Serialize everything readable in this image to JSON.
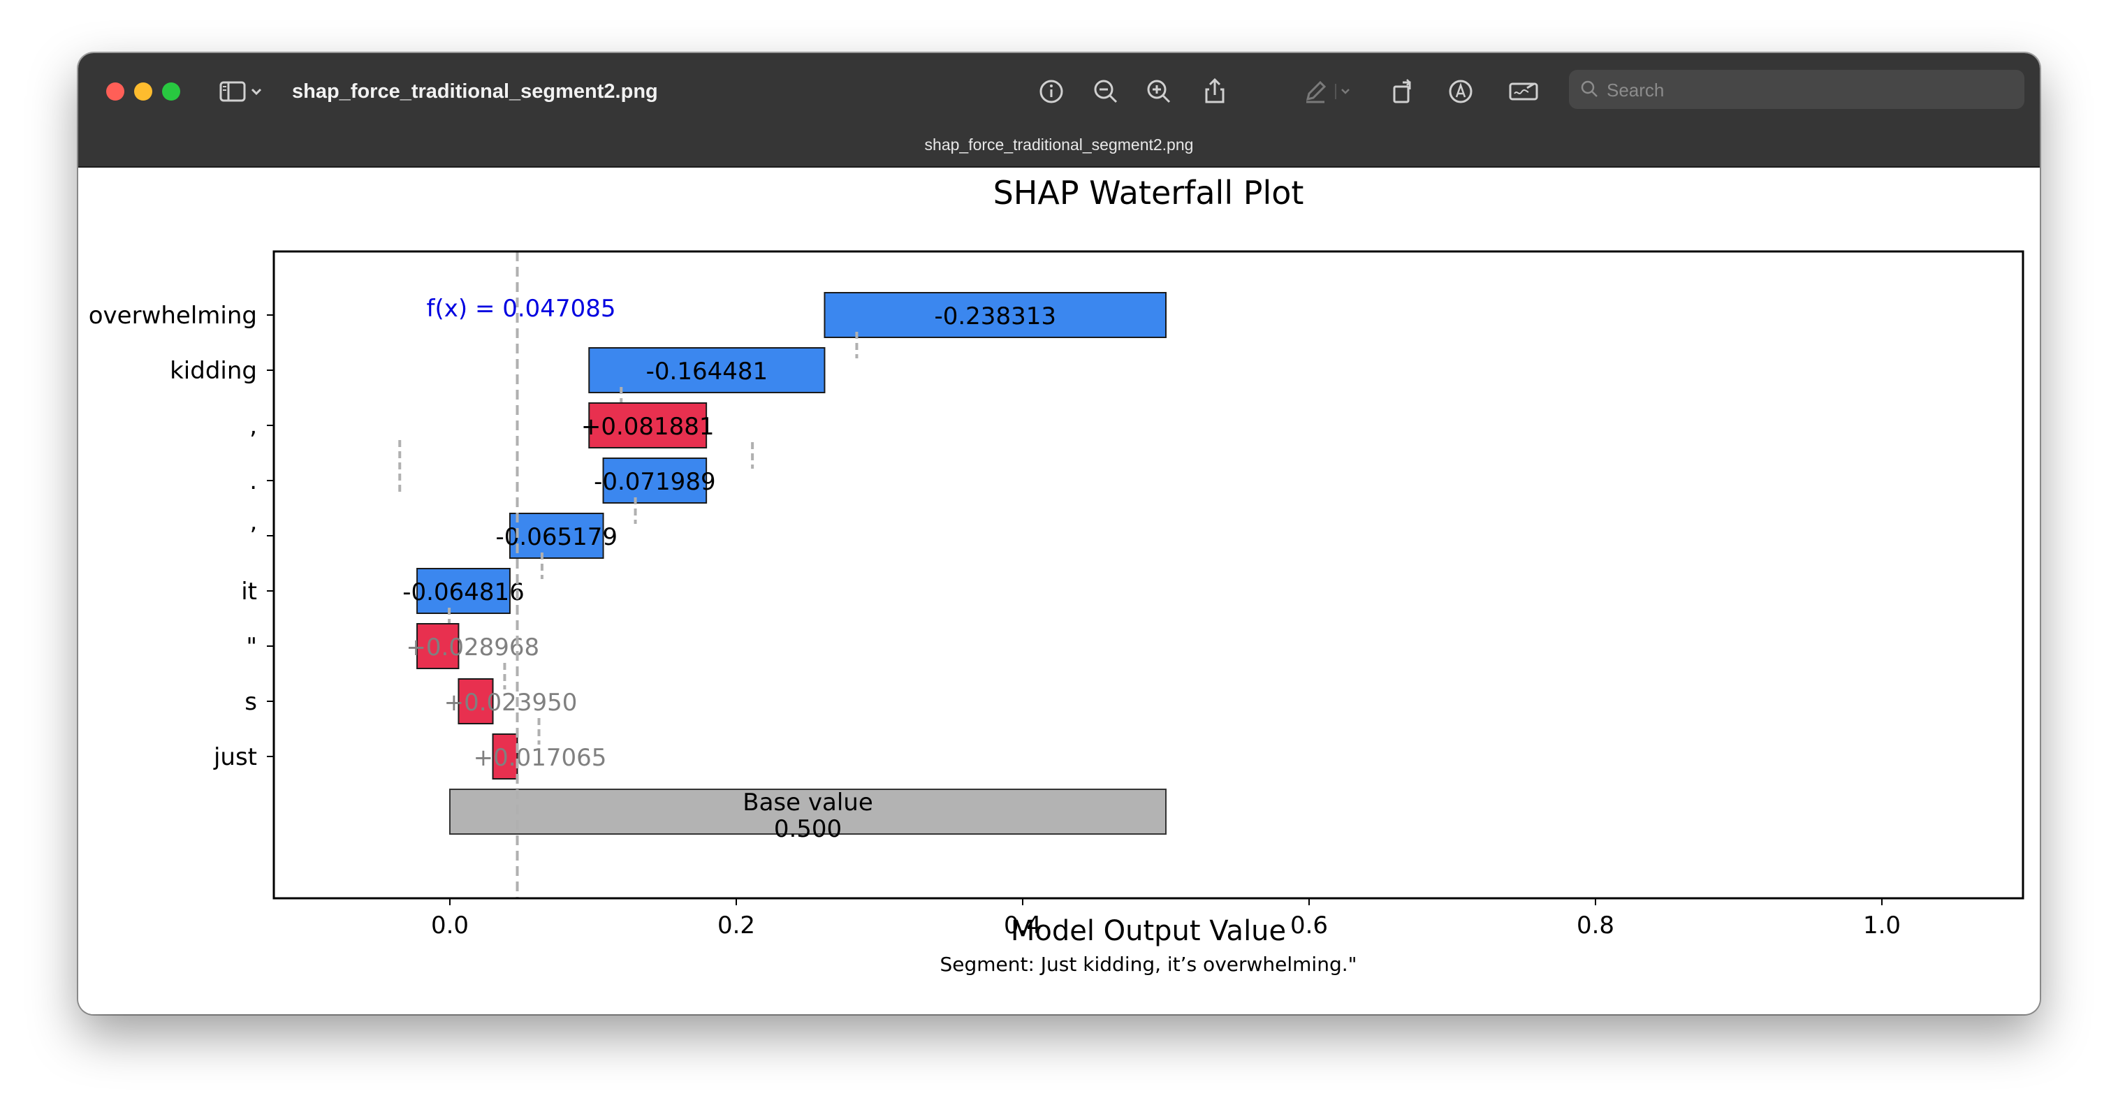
{
  "window": {
    "title": "shap_force_traditional_segment2.png",
    "subtitle": "shap_force_traditional_segment2.png",
    "search_placeholder": "Search"
  },
  "toolbar_icons": [
    "sidebar-icon",
    "chevron-down-icon",
    "info-icon",
    "zoom-out-icon",
    "zoom-in-icon",
    "share-icon",
    "highlight-pen-icon",
    "chevron-down-icon",
    "rotate-icon",
    "markup-icon",
    "signature-icon",
    "search-icon"
  ],
  "colors": {
    "negative": "#3b87ef",
    "positive": "#e8304f",
    "base": "#b3b3b3",
    "fx_text": "#0000e0",
    "dashed": "#b0b0b0"
  },
  "chart_data": {
    "type": "bar",
    "title": "SHAP Waterfall Plot",
    "xlabel": "Model Output Value",
    "caption": "Segment: Just kidding, it’s overwhelming.\"",
    "xlim": [
      -0.12,
      1.1
    ],
    "xticks": [
      "0.0",
      "0.2",
      "0.4",
      "0.6",
      "0.8",
      "1.0"
    ],
    "xtick_values": [
      0.0,
      0.2,
      0.4,
      0.6,
      0.8,
      1.0
    ],
    "fx_label": "f(x) = 0.047085",
    "fx_value": 0.047085,
    "base_label": "Base value",
    "base_value_text": "0.500",
    "base_value": 0.5,
    "features": [
      {
        "token": "overwhelming",
        "label": "-0.238313",
        "value": -0.238313,
        "start": 0.5
      },
      {
        "token": "kidding",
        "label": "-0.164481",
        "value": -0.164481,
        "start": 0.261687
      },
      {
        "token": ",",
        "label": "+0.081881",
        "value": 0.081881,
        "start": 0.097206
      },
      {
        "token": ".",
        "label": "-0.071989",
        "value": -0.071989,
        "start": 0.179087
      },
      {
        "token": "’",
        "label": "-0.065179",
        "value": -0.065179,
        "start": 0.107098
      },
      {
        "token": "it",
        "label": "-0.064816",
        "value": -0.064816,
        "start": 0.041919
      },
      {
        "token": "\"",
        "label": "+0.028968",
        "value": 0.028968,
        "start": -0.022897
      },
      {
        "token": "s",
        "label": "+0.023950",
        "value": 0.02395,
        "start": 0.006071
      },
      {
        "token": "just",
        "label": "+0.017065",
        "value": 0.017065,
        "start": 0.030021
      }
    ]
  }
}
